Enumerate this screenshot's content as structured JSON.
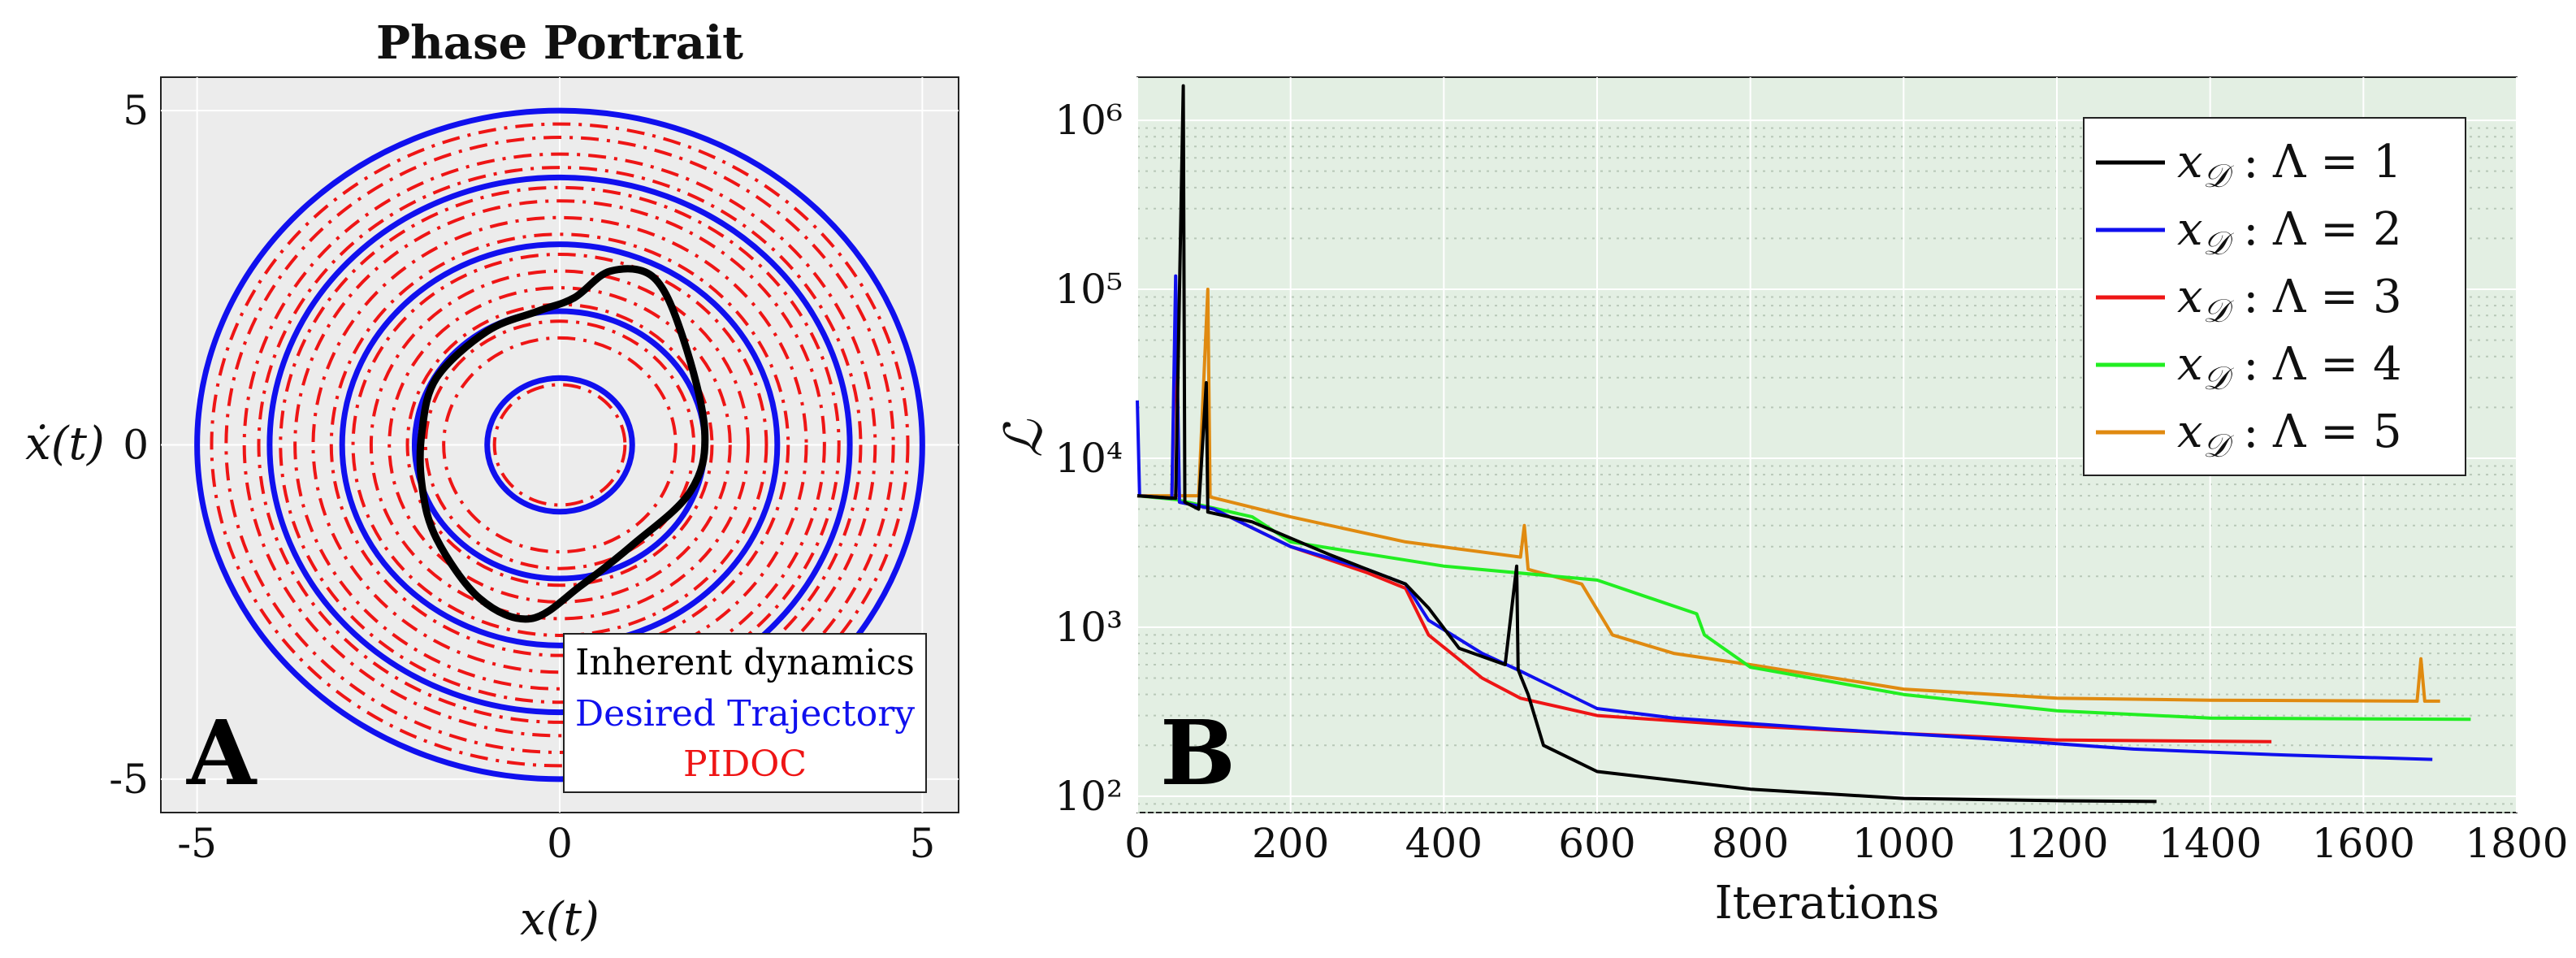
{
  "colors": {
    "black": "#000000",
    "blue": "#1010ee",
    "red": "#ee1515",
    "green": "#22ee22",
    "orange": "#e08a10",
    "panel_a_bg": "#ececec",
    "panel_b_bg": "#e3efe3"
  },
  "chart_data": [
    {
      "type": "line",
      "title": "Phase Portrait",
      "xlabel": "x(t)",
      "ylabel": "ẋ(t)",
      "xlim": [
        -5.5,
        5.5
      ],
      "ylim": [
        -5.5,
        5.5
      ],
      "xticks": [
        "-5",
        "0",
        "5"
      ],
      "yticks": [
        "5",
        "0",
        "-5"
      ],
      "grid": true,
      "panel_label": "A",
      "legend": {
        "placement": "bottom-right",
        "entries": [
          {
            "label": "Inherent dynamics",
            "color": "#000000"
          },
          {
            "label": "Desired Trajectory",
            "color": "#1010ee"
          },
          {
            "label": "PIDOC",
            "color": "#ee1515"
          }
        ]
      },
      "series": [
        {
          "name": "Desired Trajectory",
          "kind": "circles",
          "radii": [
            1,
            2,
            3,
            4,
            5
          ]
        },
        {
          "name": "PIDOC",
          "kind": "dashdot-circles",
          "radii": [
            0.9,
            1.6,
            1.85,
            2.1,
            2.35,
            2.6,
            2.85,
            3.15,
            3.4,
            3.65,
            3.85,
            4.15,
            4.35,
            4.6,
            4.8
          ]
        },
        {
          "name": "Inherent dynamics",
          "kind": "closed-curve",
          "points": [
            [
              -1.9,
              0.2
            ],
            [
              -1.7,
              1.0
            ],
            [
              -1.0,
              1.7
            ],
            [
              -0.3,
              2.0
            ],
            [
              0.2,
              2.2
            ],
            [
              0.7,
              2.6
            ],
            [
              1.3,
              2.5
            ],
            [
              1.7,
              1.6
            ],
            [
              2.0,
              0.2
            ],
            [
              1.8,
              -0.7
            ],
            [
              1.0,
              -1.5
            ],
            [
              0.3,
              -2.1
            ],
            [
              -0.4,
              -2.6
            ],
            [
              -1.1,
              -2.3
            ],
            [
              -1.7,
              -1.4
            ],
            [
              -1.9,
              -0.6
            ]
          ]
        }
      ]
    },
    {
      "type": "line",
      "ylabel": "ℒ",
      "xlabel": "Iterations",
      "xlim": [
        0,
        1800
      ],
      "ylim": [
        80,
        1800000
      ],
      "yscale": "log",
      "xticks": [
        "0",
        "200",
        "400",
        "600",
        "800",
        "1000",
        "1200",
        "1400",
        "1600",
        "1800"
      ],
      "yticks": [
        "10²",
        "10³",
        "10⁴",
        "10⁵",
        "10⁶"
      ],
      "grid": true,
      "panel_label": "B",
      "legend": {
        "placement": "top-right",
        "entries": [
          {
            "sym": "x",
            "sub": "𝒟",
            "text": " : Λ = 1",
            "color": "#000000"
          },
          {
            "sym": "x",
            "sub": "𝒟",
            "text": " : Λ = 2",
            "color": "#1010ee"
          },
          {
            "sym": "x",
            "sub": "𝒟",
            "text": " : Λ = 3",
            "color": "#ee1515"
          },
          {
            "sym": "x",
            "sub": "𝒟",
            "text": " : Λ = 4",
            "color": "#22ee22"
          },
          {
            "sym": "x",
            "sub": "𝒟",
            "text": " : Λ = 5",
            "color": "#e08a10"
          }
        ]
      },
      "series": [
        {
          "name": "x𝒟 : Λ = 1",
          "color": "#000000",
          "points": [
            [
              0,
              6000
            ],
            [
              50,
              5800
            ],
            [
              60,
              1600000
            ],
            [
              62,
              5500
            ],
            [
              80,
              5000
            ],
            [
              90,
              28000
            ],
            [
              92,
              4800
            ],
            [
              150,
              4200
            ],
            [
              250,
              2700
            ],
            [
              300,
              2200
            ],
            [
              350,
              1800
            ],
            [
              380,
              1300
            ],
            [
              420,
              750
            ],
            [
              480,
              600
            ],
            [
              495,
              2300
            ],
            [
              497,
              560
            ],
            [
              510,
              400
            ],
            [
              530,
              200
            ],
            [
              600,
              140
            ],
            [
              800,
              110
            ],
            [
              1000,
              97
            ],
            [
              1200,
              94
            ],
            [
              1330,
              93
            ]
          ]
        },
        {
          "name": "x𝒟 : Λ = 2",
          "color": "#1010ee",
          "points": [
            [
              0,
              22000
            ],
            [
              3,
              6000
            ],
            [
              45,
              5800
            ],
            [
              50,
              120000
            ],
            [
              55,
              5500
            ],
            [
              100,
              5000
            ],
            [
              200,
              3000
            ],
            [
              300,
              2200
            ],
            [
              350,
              1800
            ],
            [
              380,
              1100
            ],
            [
              450,
              700
            ],
            [
              500,
              550
            ],
            [
              600,
              330
            ],
            [
              700,
              290
            ],
            [
              900,
              250
            ],
            [
              1100,
              220
            ],
            [
              1300,
              190
            ],
            [
              1500,
              175
            ],
            [
              1690,
              165
            ]
          ]
        },
        {
          "name": "x𝒟 : Λ = 3",
          "color": "#ee1515",
          "points": [
            [
              0,
              6000
            ],
            [
              45,
              5800
            ],
            [
              50,
              60000
            ],
            [
              55,
              5500
            ],
            [
              100,
              5000
            ],
            [
              200,
              3000
            ],
            [
              300,
              2100
            ],
            [
              350,
              1700
            ],
            [
              380,
              900
            ],
            [
              450,
              500
            ],
            [
              500,
              380
            ],
            [
              600,
              300
            ],
            [
              800,
              260
            ],
            [
              1000,
              235
            ],
            [
              1200,
              215
            ],
            [
              1480,
              210
            ]
          ]
        },
        {
          "name": "x𝒟 : Λ = 4",
          "color": "#22ee22",
          "points": [
            [
              0,
              6000
            ],
            [
              50,
              5700
            ],
            [
              150,
              4500
            ],
            [
              200,
              3200
            ],
            [
              400,
              2300
            ],
            [
              600,
              1900
            ],
            [
              730,
              1200
            ],
            [
              740,
              900
            ],
            [
              800,
              580
            ],
            [
              1000,
              400
            ],
            [
              1200,
              320
            ],
            [
              1400,
              290
            ],
            [
              1740,
              285
            ]
          ]
        },
        {
          "name": "x𝒟 : Λ = 5",
          "color": "#e08a10",
          "points": [
            [
              0,
              6000
            ],
            [
              80,
              6000
            ],
            [
              92,
              100000
            ],
            [
              95,
              5900
            ],
            [
              200,
              4500
            ],
            [
              350,
              3200
            ],
            [
              500,
              2600
            ],
            [
              505,
              4000
            ],
            [
              510,
              2200
            ],
            [
              580,
              1800
            ],
            [
              620,
              900
            ],
            [
              700,
              700
            ],
            [
              800,
              600
            ],
            [
              1000,
              430
            ],
            [
              1200,
              380
            ],
            [
              1400,
              370
            ],
            [
              1670,
              365
            ],
            [
              1675,
              650
            ],
            [
              1680,
              365
            ],
            [
              1700,
              365
            ]
          ]
        }
      ]
    }
  ]
}
